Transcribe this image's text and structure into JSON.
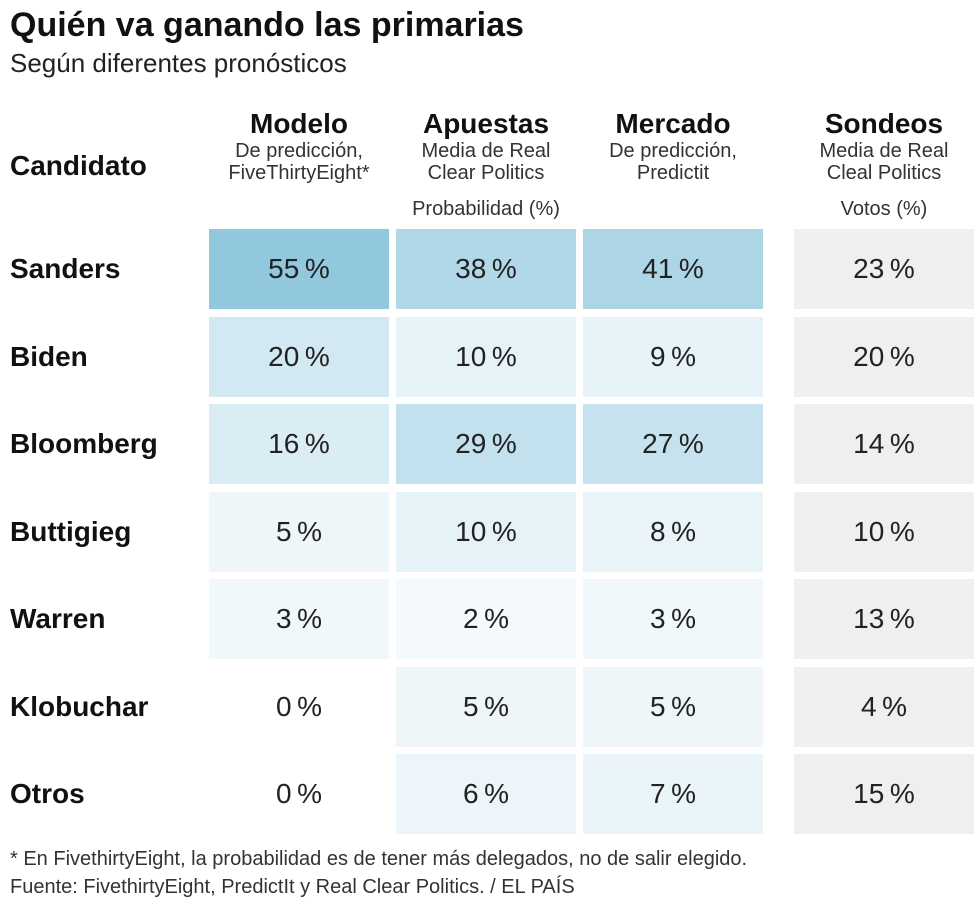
{
  "title": "Quién va ganando las primarias",
  "subtitle": "Según diferentes pronósticos",
  "candidate_header": "Candidato",
  "unit_prob": "Probabilidad (%)",
  "unit_votes": "Votos (%)",
  "columns": [
    {
      "header": "Modelo",
      "sub1": "De predicción,",
      "sub2": "FiveThirtyEight*"
    },
    {
      "header": "Apuestas",
      "sub1": "Media de Real",
      "sub2": "Clear Politics"
    },
    {
      "header": "Mercado",
      "sub1": "De predicción,",
      "sub2": "Predictit"
    },
    {
      "header": "Sondeos",
      "sub1": "Media de Real",
      "sub2": "Cleal Politics"
    }
  ],
  "chart_data": {
    "type": "table",
    "title": "Quién va ganando las primarias",
    "subtitle": "Según diferentes pronósticos",
    "candidates": [
      "Sanders",
      "Biden",
      "Bloomberg",
      "Buttigieg",
      "Warren",
      "Klobuchar",
      "Otros"
    ],
    "series": [
      {
        "name": "Modelo",
        "unit": "Probabilidad (%)",
        "values": [
          55,
          20,
          16,
          5,
          3,
          0,
          0
        ]
      },
      {
        "name": "Apuestas",
        "unit": "Probabilidad (%)",
        "values": [
          38,
          10,
          29,
          10,
          2,
          5,
          6
        ]
      },
      {
        "name": "Mercado",
        "unit": "Probabilidad (%)",
        "values": [
          41,
          9,
          27,
          8,
          3,
          5,
          7
        ]
      },
      {
        "name": "Sondeos",
        "unit": "Votos (%)",
        "values": [
          23,
          20,
          14,
          10,
          13,
          4,
          15
        ]
      }
    ]
  },
  "colors": {
    "scale_low": "#f7fbfd",
    "scale_high": "#92c8de",
    "poll_bg": "#efefef"
  },
  "footnote": "* En FivethirtyEight, la probabilidad es de tener más delegados, no de salir elegido.",
  "source": "Fuente: FivethirtyEight, PredictIt y Real Clear Politics.  / EL PAÍS"
}
